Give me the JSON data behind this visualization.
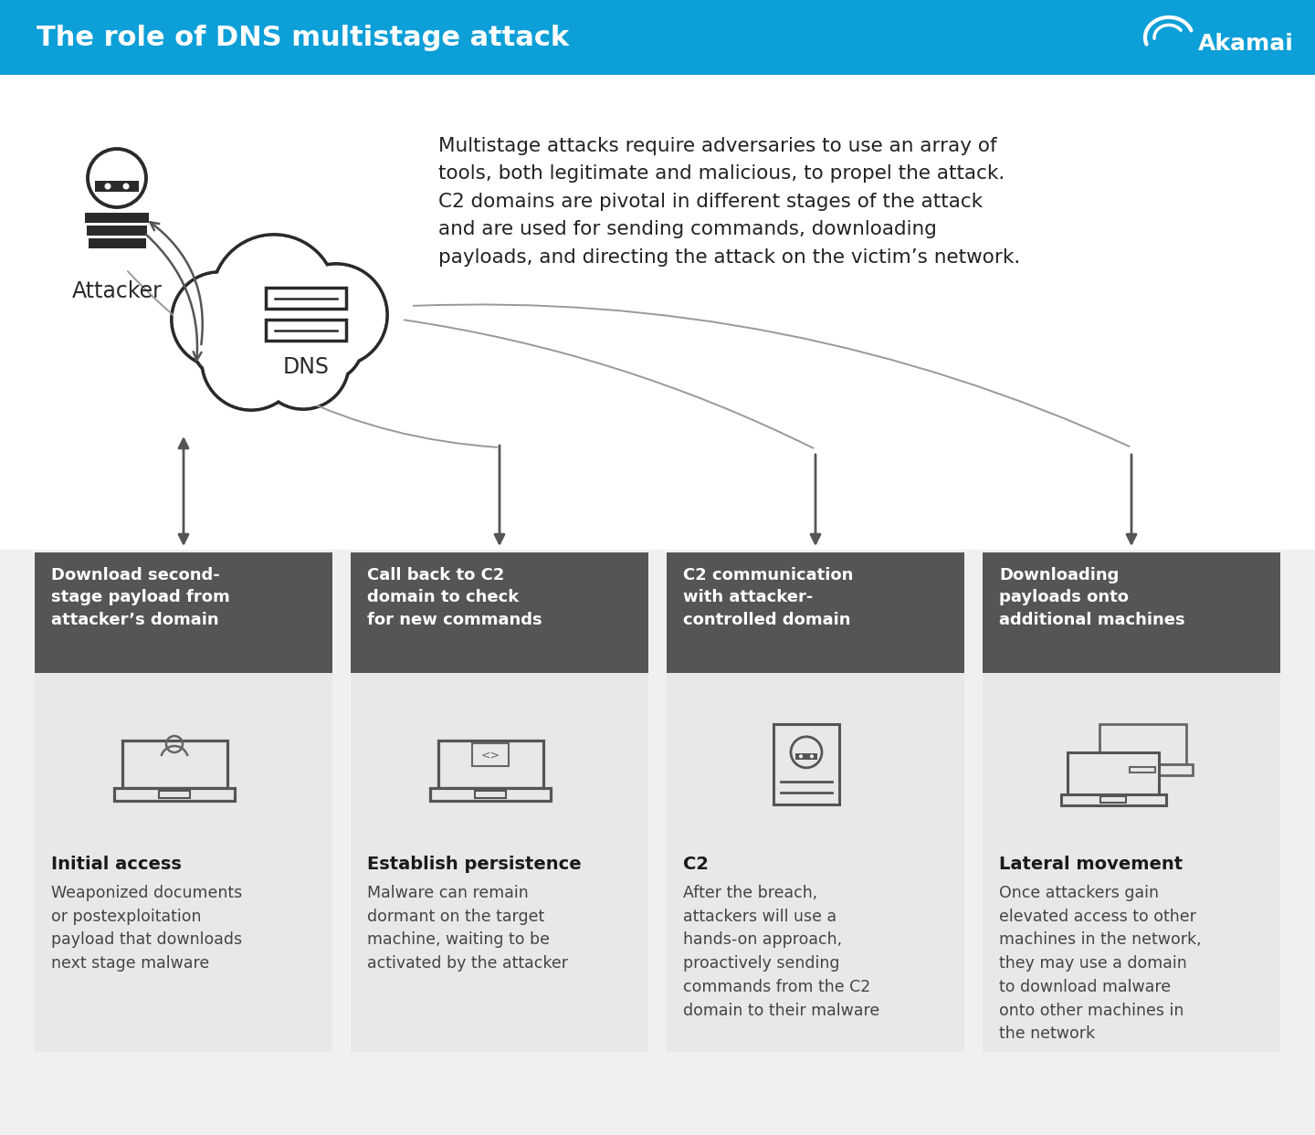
{
  "title": "The role of DNS multistage attack",
  "header_bg": "#0d9fd8",
  "header_text_color": "#ffffff",
  "bg_color": "#ffffff",
  "dark_box_color": "#555558",
  "light_box_color": "#e8e8e8",
  "description_text": "Multistage attacks require adversaries to use an array of\ntools, both legitimate and malicious, to propel the attack.\nC2 domains are pivotal in different stages of the attack\nand are used for sending commands, downloading\npayloads, and directing the attack on the victim’s network.",
  "columns": [
    {
      "header": "Download second-\nstage payload from\nattacker’s domain",
      "icon": "laptop_user",
      "title": "Initial access",
      "body": "Weaponized documents\nor postexploitation\npayload that downloads\nnext stage malware"
    },
    {
      "header": "Call back to C2\ndomain to check\nfor new commands",
      "icon": "laptop_code",
      "title": "Establish persistence",
      "body": "Malware can remain\ndormant on the target\nmachine, waiting to be\nactivated by the attacker"
    },
    {
      "header": "C2 communication\nwith attacker-\ncontrolled domain",
      "icon": "hacker_card",
      "title": "C2",
      "body": "After the breach,\nattackers will use a\nhands-on approach,\nproactively sending\ncommands from the C2\ndomain to their malware"
    },
    {
      "header": "Downloading\npayloads onto\nadditional machines",
      "icon": "laptops_multi",
      "title": "Lateral movement",
      "body": "Once attackers gain\nelevated access to other\nmachines in the network,\nthey may use a domain\nto download malware\nonto other machines in\nthe network"
    }
  ]
}
